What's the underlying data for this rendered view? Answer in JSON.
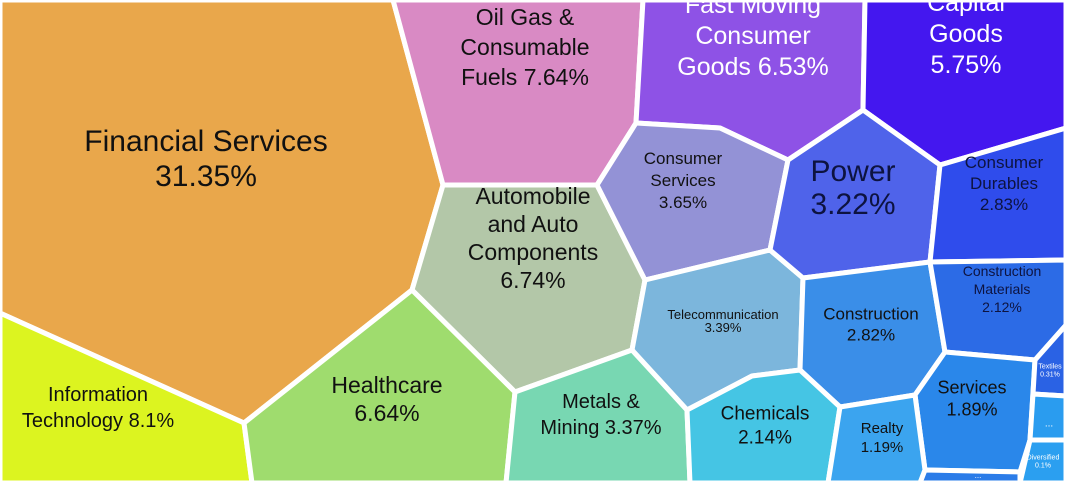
{
  "chart_data": {
    "type": "voronoi-treemap",
    "title": "",
    "cells": [
      {
        "label": [
          "Financial Services",
          "31.35%"
        ],
        "name": "Financial Services",
        "value": 31.35,
        "color": "#e9a74b"
      },
      {
        "label": [
          "Information",
          "Technology 8.1%"
        ],
        "name": "Information Technology",
        "value": 8.1,
        "color": "#dcf420"
      },
      {
        "label": [
          "Oil Gas &",
          "Consumable",
          "Fuels 7.64%"
        ],
        "name": "Oil Gas & Consumable Fuels",
        "value": 7.64,
        "color": "#d98ac4"
      },
      {
        "label": [
          "Automobile",
          "and Auto",
          "Components",
          "6.74%"
        ],
        "name": "Automobile and Auto Components",
        "value": 6.74,
        "color": "#b3c7a8"
      },
      {
        "label": [
          "Healthcare",
          "6.64%"
        ],
        "name": "Healthcare",
        "value": 6.64,
        "color": "#9fdc6e"
      },
      {
        "label": [
          "Fast Moving",
          "Consumer",
          "Goods 6.53%"
        ],
        "name": "Fast Moving Consumer Goods",
        "value": 6.53,
        "color": "#8e52e6"
      },
      {
        "label": [
          "Capital",
          "Goods",
          "5.75%"
        ],
        "name": "Capital Goods",
        "value": 5.75,
        "color": "#4417ef"
      },
      {
        "label": [
          "Consumer",
          "Services",
          "3.65%"
        ],
        "name": "Consumer Services",
        "value": 3.65,
        "color": "#9392d6"
      },
      {
        "label": [
          "Telecommunication",
          "3.39%"
        ],
        "name": "Telecommunication",
        "value": 3.39,
        "color": "#7cb6dc"
      },
      {
        "label": [
          "Metals &",
          "Mining 3.37%"
        ],
        "name": "Metals & Mining",
        "value": 3.37,
        "color": "#78d7b2"
      },
      {
        "label": [
          "Power",
          "3.22%"
        ],
        "name": "Power",
        "value": 3.22,
        "color": "#4f63ea"
      },
      {
        "label": [
          "Consumer",
          "Durables",
          "2.83%"
        ],
        "name": "Consumer Durables",
        "value": 2.83,
        "color": "#2f4cec"
      },
      {
        "label": [
          "Construction",
          "2.82%"
        ],
        "name": "Construction",
        "value": 2.82,
        "color": "#3a8ee8"
      },
      {
        "label": [
          "Chemicals",
          "2.14%"
        ],
        "name": "Chemicals",
        "value": 2.14,
        "color": "#45c5e4"
      },
      {
        "label": [
          "Construction",
          "Materials",
          "2.12%"
        ],
        "name": "Construction Materials",
        "value": 2.12,
        "color": "#2c6be6"
      },
      {
        "label": [
          "Services",
          "1.89%"
        ],
        "name": "Services",
        "value": 1.89,
        "color": "#2a87ea"
      },
      {
        "label": [
          "Realty",
          "1.19%"
        ],
        "name": "Realty",
        "value": 1.19,
        "color": "#3ba4ef"
      },
      {
        "label": [
          "Textiles",
          "0.31%"
        ],
        "name": "Textiles",
        "value": 0.31,
        "color": "#2a62e4"
      },
      {
        "label": [
          "Diversified",
          "0.1%"
        ],
        "name": "Diversified",
        "value": 0.1,
        "color": "#2b9ff0"
      },
      {
        "label": [
          "..."
        ],
        "name": "...",
        "value": null,
        "color": "#2b7ce8"
      },
      {
        "label": [
          "..."
        ],
        "name": "...",
        "value": null,
        "color": "#2a9cef"
      }
    ]
  }
}
